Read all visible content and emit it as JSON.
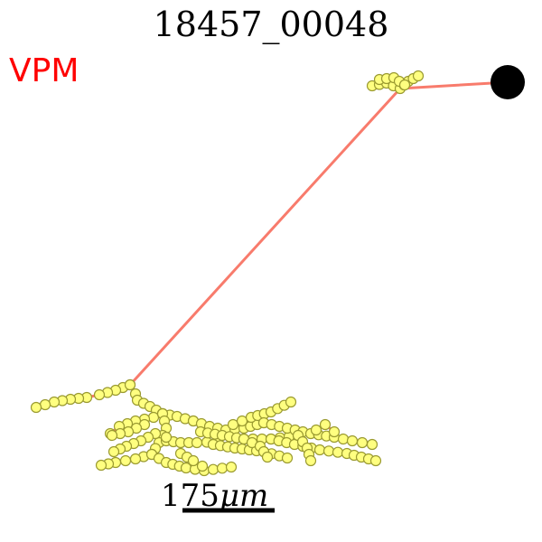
{
  "title": "18457_00048",
  "region_label": "VPM",
  "scale_bar": {
    "value": "175",
    "unit": "μm"
  },
  "colors": {
    "region": "#ff0000",
    "axon": "#f87b6c",
    "node_fill": "#ffff80",
    "node_stroke": "#9a9a30",
    "soma": "#000000"
  }
}
